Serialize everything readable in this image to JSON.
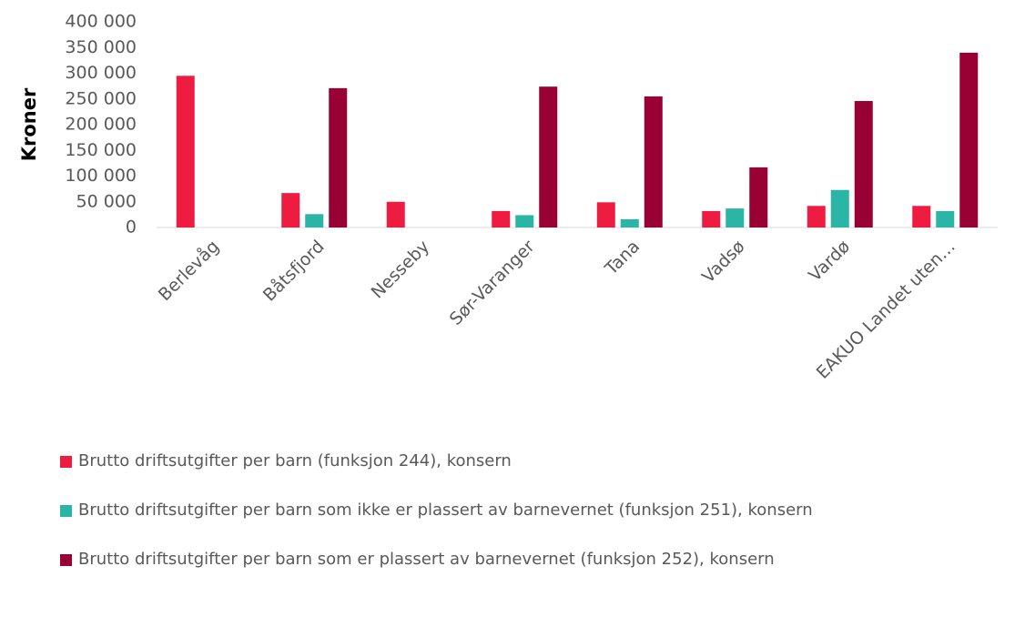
{
  "chart_data": {
    "type": "bar",
    "ylabel": "Kroner",
    "categories": [
      "Berlevåg",
      "Båtsfjord",
      "Nesseby",
      "Sør-Varanger",
      "Tana",
      "Vadsø",
      "Vardø",
      "EAKUO Landet uten…"
    ],
    "series": [
      {
        "name": "Brutto driftsutgifter per barn (funksjon 244), konsern",
        "color": "#ed1c40",
        "values": [
          295000,
          67000,
          50000,
          32000,
          49000,
          32000,
          42000,
          42000
        ]
      },
      {
        "name": "Brutto driftsutgifter per barn som ikke er plassert av barnevernet (funksjon 251), konsern",
        "color": "#2bb5a6",
        "values": [
          null,
          26000,
          null,
          24000,
          16000,
          37000,
          73000,
          32000
        ]
      },
      {
        "name": "Brutto driftsutgifter per barn som er plassert av barnevernet (funksjon 252), konsern",
        "color": "#990033",
        "values": [
          null,
          271000,
          null,
          274000,
          255000,
          117000,
          246000,
          340000
        ]
      }
    ],
    "ylim": [
      0,
      400000
    ],
    "yticks": [
      0,
      {
        "value": 50000,
        "label": "50 000"
      },
      {
        "value": 100000,
        "label": "100 000"
      },
      {
        "value": 150000,
        "label": "150 000"
      },
      {
        "value": 200000,
        "label": "200 000"
      },
      {
        "value": 250000,
        "label": "250 000"
      },
      {
        "value": 300000,
        "label": "300 000"
      },
      {
        "value": 350000,
        "label": "350 000"
      },
      {
        "value": 400000,
        "label": "400 000"
      }
    ]
  }
}
